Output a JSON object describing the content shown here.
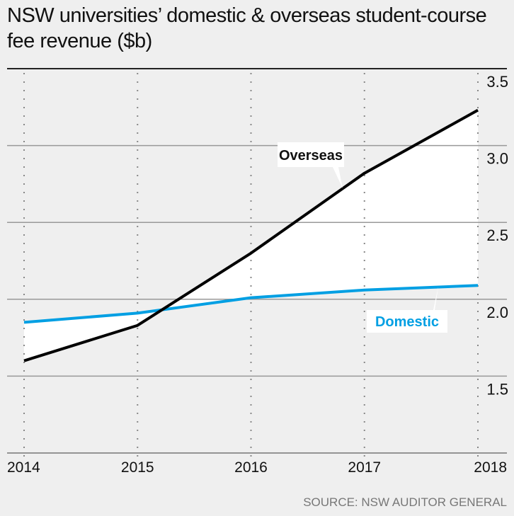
{
  "chart_data": {
    "type": "line",
    "title": "NSW universities’ domestic & overseas student-course fee revenue ($b)",
    "source": "SOURCE: NSW AUDITOR GENERAL",
    "categories": [
      "2014",
      "2015",
      "2016",
      "2017",
      "2018"
    ],
    "series": [
      {
        "name": "Overseas",
        "color": "#000000",
        "values": [
          1.6,
          1.83,
          2.3,
          2.82,
          3.23
        ]
      },
      {
        "name": "Domestic",
        "color": "#009fe3",
        "values": [
          1.85,
          1.91,
          2.01,
          2.06,
          2.09
        ]
      }
    ],
    "yticks": [
      "1.5",
      "2.0",
      "2.5",
      "3.0",
      "3.5"
    ],
    "ylim": [
      1.0,
      3.5
    ],
    "xlabel": "",
    "ylabel": "",
    "grid": true,
    "area_between_series_color": "#ffffff"
  }
}
